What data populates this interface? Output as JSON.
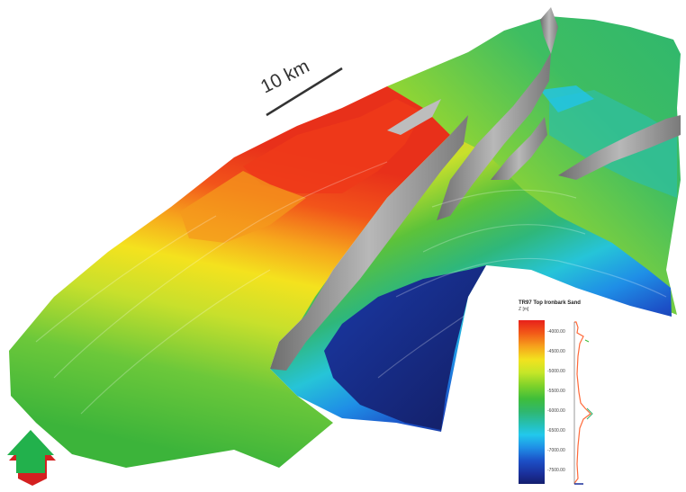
{
  "scale_bar": {
    "label": "10 km"
  },
  "legend": {
    "title": "TR97 Top Ironbark Sand",
    "unit": "Z [m]",
    "ticks": [
      "-4000.00",
      "-4500.00",
      "-5000.00",
      "-5500.00",
      "-6000.00",
      "-6500.00",
      "-7000.00",
      "-7500.00"
    ],
    "colors": {
      "high": "#e8201a",
      "mid": "#3fbe3a",
      "low": "#141f6e",
      "histogram": "#ff6a3a"
    }
  },
  "north_arrow": {
    "icon": "north-arrow-icon",
    "color": "#22b14c",
    "base_color": "#d42020"
  },
  "fault_color": "#9e9e9e"
}
